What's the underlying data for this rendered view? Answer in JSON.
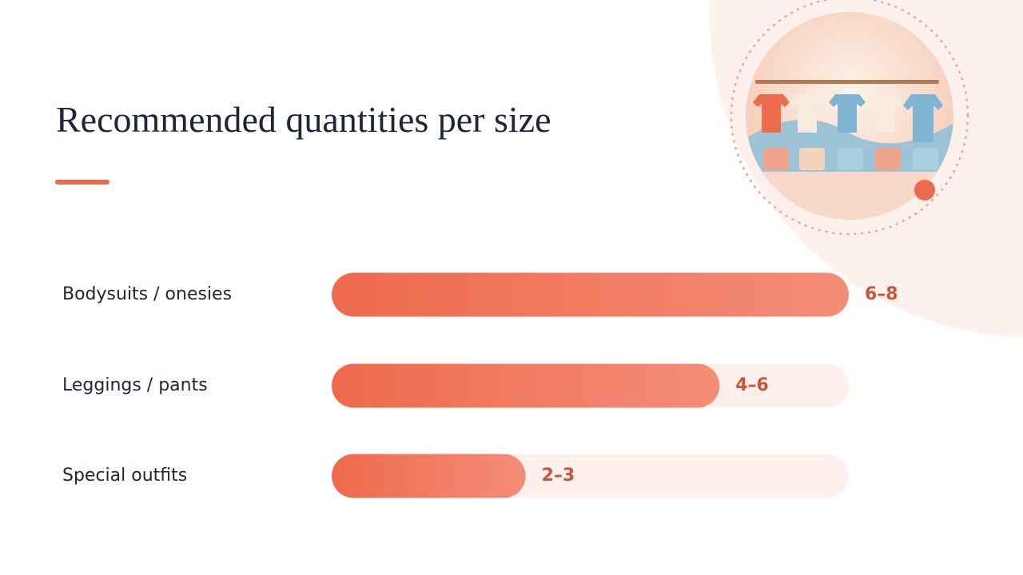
{
  "chart_data": {
    "type": "bar",
    "orientation": "horizontal",
    "title": "Recommended quantities per size",
    "categories": [
      "Bodysuits / onesies",
      "Leggings / pants",
      "Special outfits"
    ],
    "values": [
      8,
      6,
      3
    ],
    "value_labels": [
      "6–8",
      "4–6",
      "2–3"
    ],
    "xlim": [
      0,
      8
    ],
    "color": "#ee6a4c"
  }
}
